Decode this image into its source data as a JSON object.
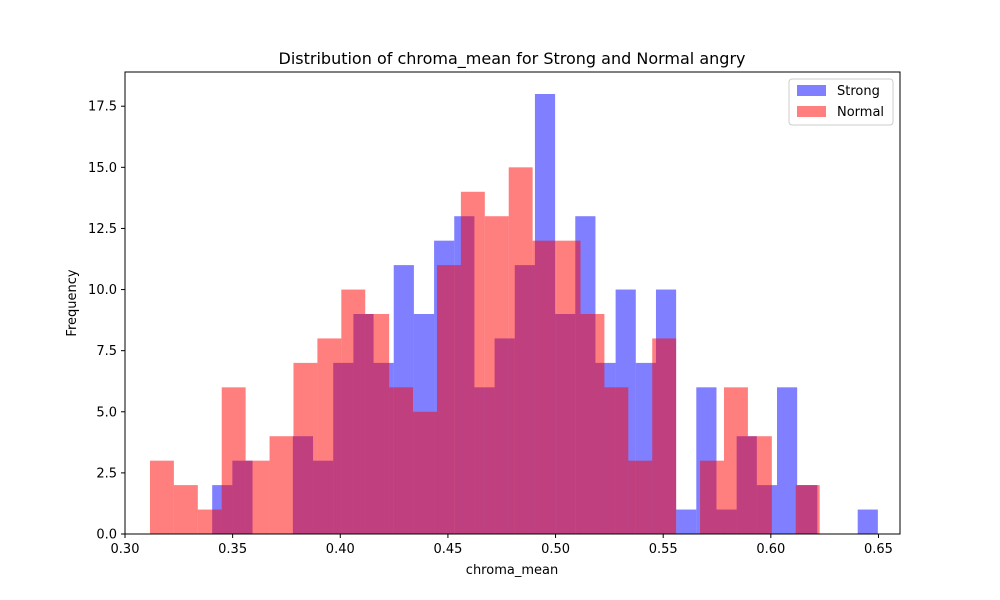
{
  "chart_data": {
    "type": "bar",
    "title": "Distribution of chroma_mean for Strong and Normal angry",
    "xlabel": "chroma_mean",
    "ylabel": "Frequency",
    "xlim": [
      0.3,
      0.66
    ],
    "ylim": [
      0,
      18.9
    ],
    "xticks": [
      0.3,
      0.35,
      0.4,
      0.45,
      0.5,
      0.55,
      0.6,
      0.65
    ],
    "xtick_labels": [
      "0.30",
      "0.35",
      "0.40",
      "0.45",
      "0.50",
      "0.55",
      "0.60",
      "0.65"
    ],
    "yticks": [
      0.0,
      2.5,
      5.0,
      7.5,
      10.0,
      12.5,
      15.0,
      17.5
    ],
    "ytick_labels": [
      "0.0",
      "2.5",
      "5.0",
      "7.5",
      "10.0",
      "12.5",
      "15.0",
      "17.5"
    ],
    "legend_position": "top-right",
    "grid": false,
    "series": [
      {
        "name": "Strong",
        "color": "#0000ff",
        "alpha": 0.5,
        "bin_start": 0.3405,
        "bin_width": 0.00937,
        "values": [
          2,
          3,
          0,
          0,
          4,
          3,
          7,
          9,
          7,
          11,
          9,
          12,
          13,
          6,
          8,
          11,
          18,
          9,
          13,
          7,
          10,
          7,
          10,
          1,
          6,
          1,
          4,
          2,
          6,
          2,
          0,
          0,
          1,
          0
        ]
      },
      {
        "name": "Normal",
        "color": "#ff0000",
        "alpha": 0.5,
        "bin_start": 0.3116,
        "bin_width": 0.01111,
        "values": [
          3,
          2,
          1,
          6,
          3,
          4,
          7,
          8,
          10,
          9,
          6,
          5,
          11,
          14,
          13,
          15,
          12,
          12,
          9,
          6,
          3,
          8,
          0,
          3,
          6,
          4,
          0,
          2
        ]
      }
    ]
  }
}
